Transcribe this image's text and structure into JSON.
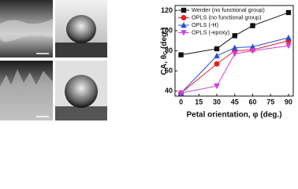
{
  "chart_data": {
    "type": "line",
    "x_label": "Petal orientation, φ (deg.)",
    "y_label": {
      "text": "CA, θ",
      "sub": "C",
      "rest": " (deg.)"
    },
    "x": [
      0,
      30,
      45,
      60,
      90
    ],
    "xlim": [
      -5,
      94
    ],
    "xticks": [
      0,
      15,
      30,
      45,
      60,
      75,
      90
    ],
    "ylim": [
      35,
      125
    ],
    "yticks": [
      40,
      60,
      80,
      100,
      120
    ],
    "legend": "upper left",
    "series": [
      {
        "name": "Werder (no functional group)",
        "color": "#111111",
        "marker": "square",
        "values": [
          76,
          82,
          95,
          105,
          118
        ]
      },
      {
        "name": "OPLS (no functional group)",
        "color": "#e8202a",
        "marker": "circle",
        "values": [
          38,
          67,
          80,
          81,
          90
        ]
      },
      {
        "name": "OPLS (-H)",
        "color": "#2a4fd0",
        "marker": "triangle-up",
        "values": [
          38,
          75,
          83,
          84,
          93
        ]
      },
      {
        "name": "OPLS (-epoxy)",
        "color": "#d040e0",
        "marker": "triangle-down",
        "values": [
          38,
          45,
          77,
          80,
          85
        ]
      }
    ]
  }
}
